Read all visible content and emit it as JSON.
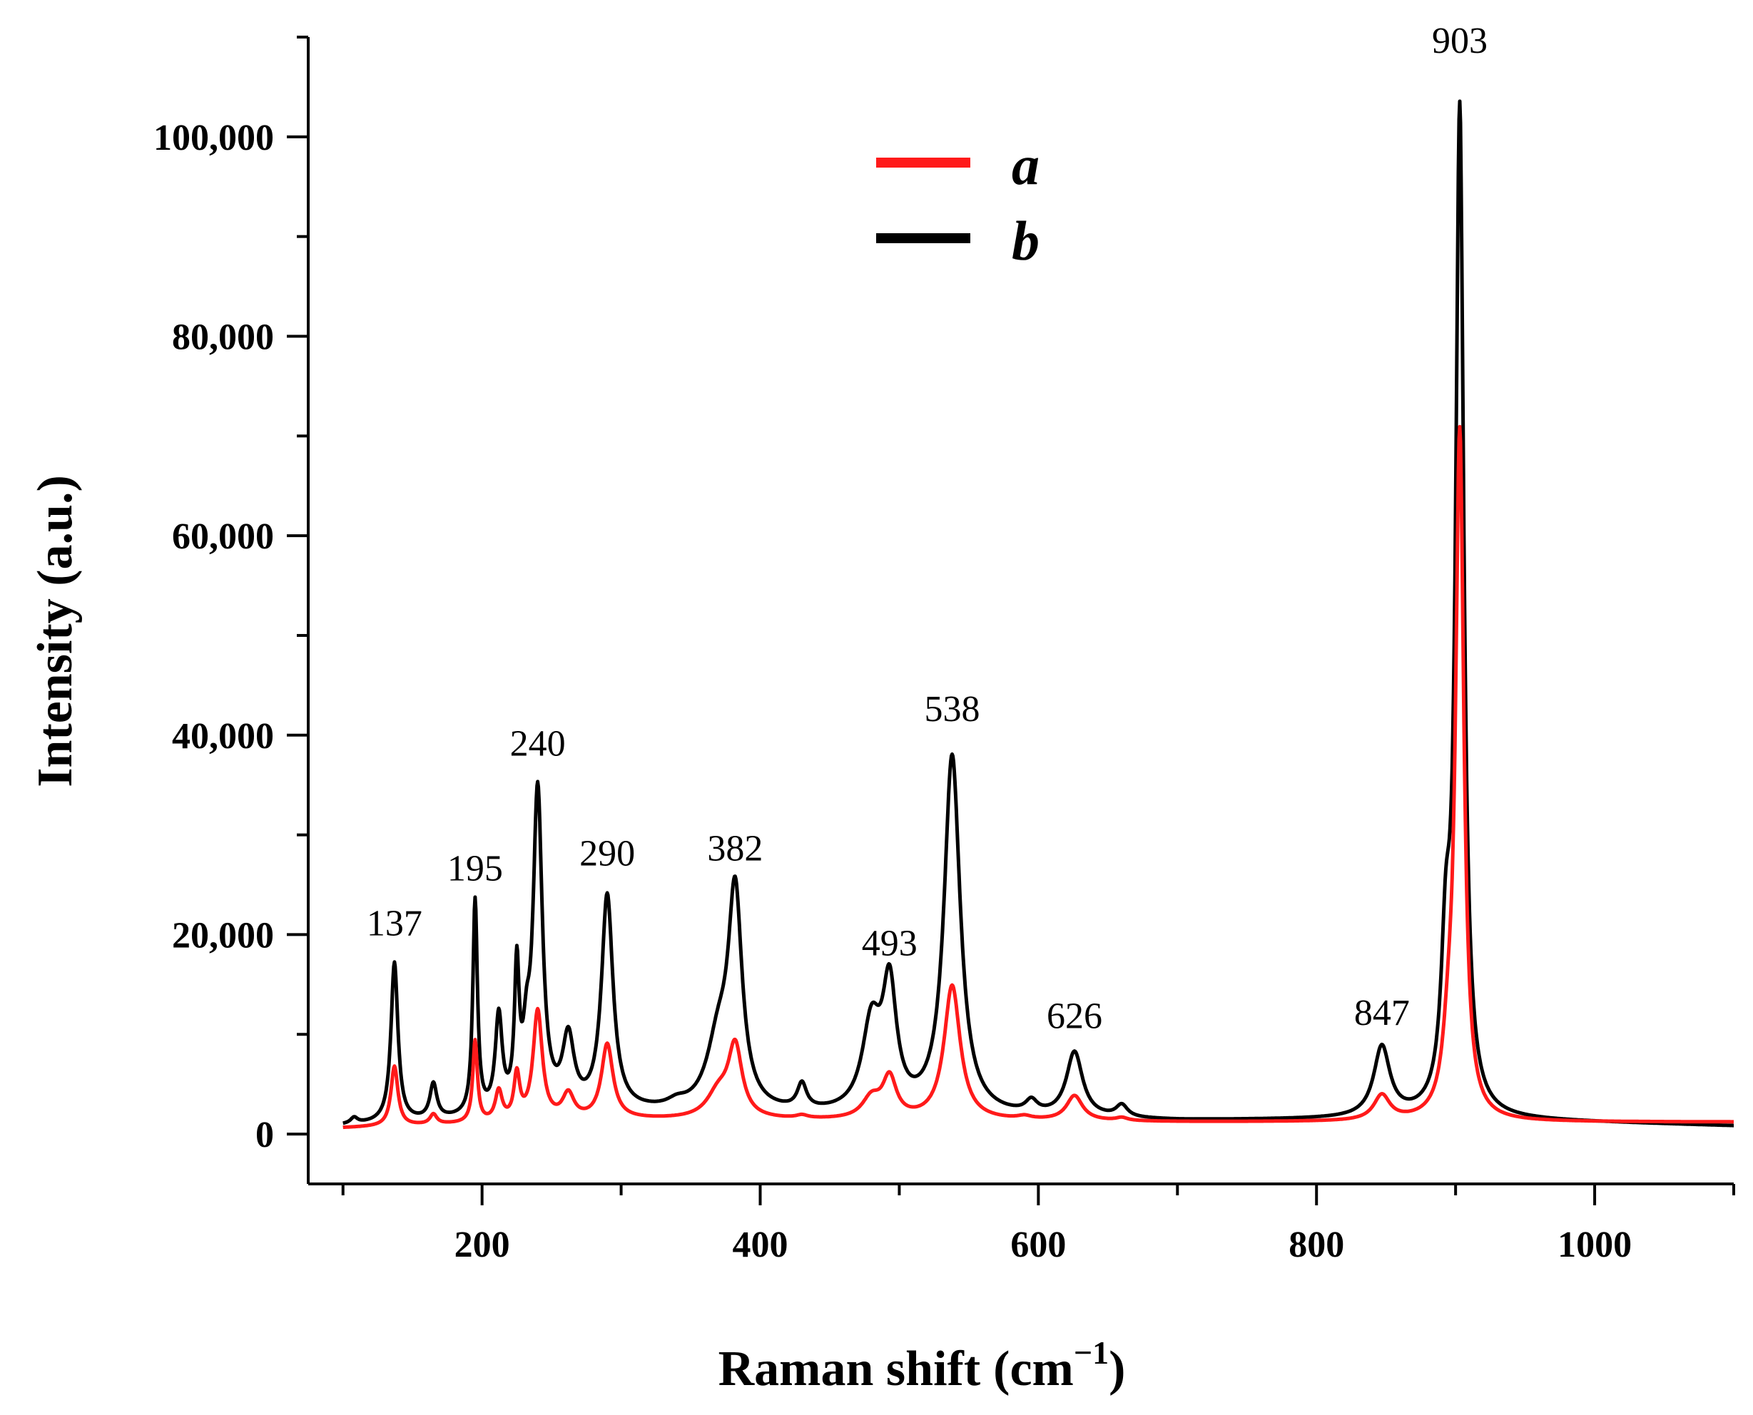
{
  "chart_data": {
    "type": "line",
    "xlabel_main": "Raman shift",
    "xlabel_unit": "(cm",
    "xlabel_sup": "−1",
    "xlabel_close": ")",
    "ylabel": "Intensity (a.u.)",
    "xlim": [
      75,
      1100
    ],
    "ylim": [
      -5000,
      110000
    ],
    "x_ticks": [
      200,
      400,
      600,
      800,
      1000
    ],
    "x_tick_labels": [
      "200",
      "400",
      "600",
      "800",
      "1000"
    ],
    "y_ticks": [
      0,
      20000,
      40000,
      60000,
      80000,
      100000
    ],
    "y_tick_labels": [
      "0",
      "20,000",
      "40,000",
      "60,000",
      "80,000",
      "100,000"
    ],
    "legend_position": "top-center",
    "legend": [
      {
        "label": "a",
        "color": "#ff1a1a"
      },
      {
        "label": "b",
        "color": "#000000"
      }
    ],
    "peak_labels": [
      {
        "text": "137",
        "x": 137,
        "y": 17500
      },
      {
        "text": "195",
        "x": 195,
        "y": 23000
      },
      {
        "text": "240",
        "x": 240,
        "y": 35500
      },
      {
        "text": "290",
        "x": 290,
        "y": 24500
      },
      {
        "text": "382",
        "x": 382,
        "y": 25000
      },
      {
        "text": "493",
        "x": 493,
        "y": 15500
      },
      {
        "text": "538",
        "x": 538,
        "y": 39000
      },
      {
        "text": "626",
        "x": 626,
        "y": 8200
      },
      {
        "text": "847",
        "x": 847,
        "y": 8500
      },
      {
        "text": "903",
        "x": 903,
        "y": 106000
      }
    ],
    "series": [
      {
        "name": "a",
        "color": "#ff1a1a",
        "baseline": [
          [
            100,
            600
          ],
          [
            300,
            1400
          ],
          [
            700,
            1200
          ],
          [
            1100,
            1200
          ]
        ],
        "peaks": [
          [
            137,
            6000,
            3
          ],
          [
            165,
            1000,
            3
          ],
          [
            195,
            8200,
            2
          ],
          [
            212,
            3000,
            3
          ],
          [
            225,
            4500,
            2.5
          ],
          [
            240,
            11000,
            4
          ],
          [
            262,
            2500,
            5
          ],
          [
            290,
            7500,
            5
          ],
          [
            370,
            2500,
            10
          ],
          [
            382,
            7000,
            6
          ],
          [
            430,
            300,
            5
          ],
          [
            480,
            2000,
            8
          ],
          [
            493,
            4000,
            6
          ],
          [
            538,
            13500,
            7
          ],
          [
            590,
            300,
            6
          ],
          [
            626,
            2500,
            7
          ],
          [
            660,
            300,
            5
          ],
          [
            847,
            2500,
            7
          ],
          [
            895,
            6000,
            5
          ],
          [
            903,
            68000,
            3.5
          ]
        ]
      },
      {
        "name": "b",
        "color": "#000000",
        "baseline": [
          [
            100,
            800
          ],
          [
            300,
            2000
          ],
          [
            700,
            1300
          ],
          [
            900,
            1500
          ],
          [
            1100,
            800
          ]
        ],
        "peaks": [
          [
            108,
            600,
            3
          ],
          [
            137,
            16000,
            3
          ],
          [
            165,
            3500,
            3
          ],
          [
            195,
            21500,
            2
          ],
          [
            212,
            9500,
            3
          ],
          [
            225,
            13500,
            2
          ],
          [
            232,
            5000,
            3
          ],
          [
            240,
            32000,
            4
          ],
          [
            262,
            7000,
            5
          ],
          [
            290,
            21500,
            5
          ],
          [
            340,
            600,
            8
          ],
          [
            370,
            6500,
            10
          ],
          [
            382,
            21000,
            6
          ],
          [
            430,
            2500,
            4
          ],
          [
            480,
            8500,
            8
          ],
          [
            493,
            12000,
            6
          ],
          [
            538,
            36000,
            7
          ],
          [
            595,
            1200,
            5
          ],
          [
            626,
            6500,
            7
          ],
          [
            660,
            1200,
            5
          ],
          [
            847,
            7000,
            7
          ],
          [
            893,
            14000,
            4
          ],
          [
            903,
            100000,
            3.5
          ]
        ]
      }
    ]
  }
}
